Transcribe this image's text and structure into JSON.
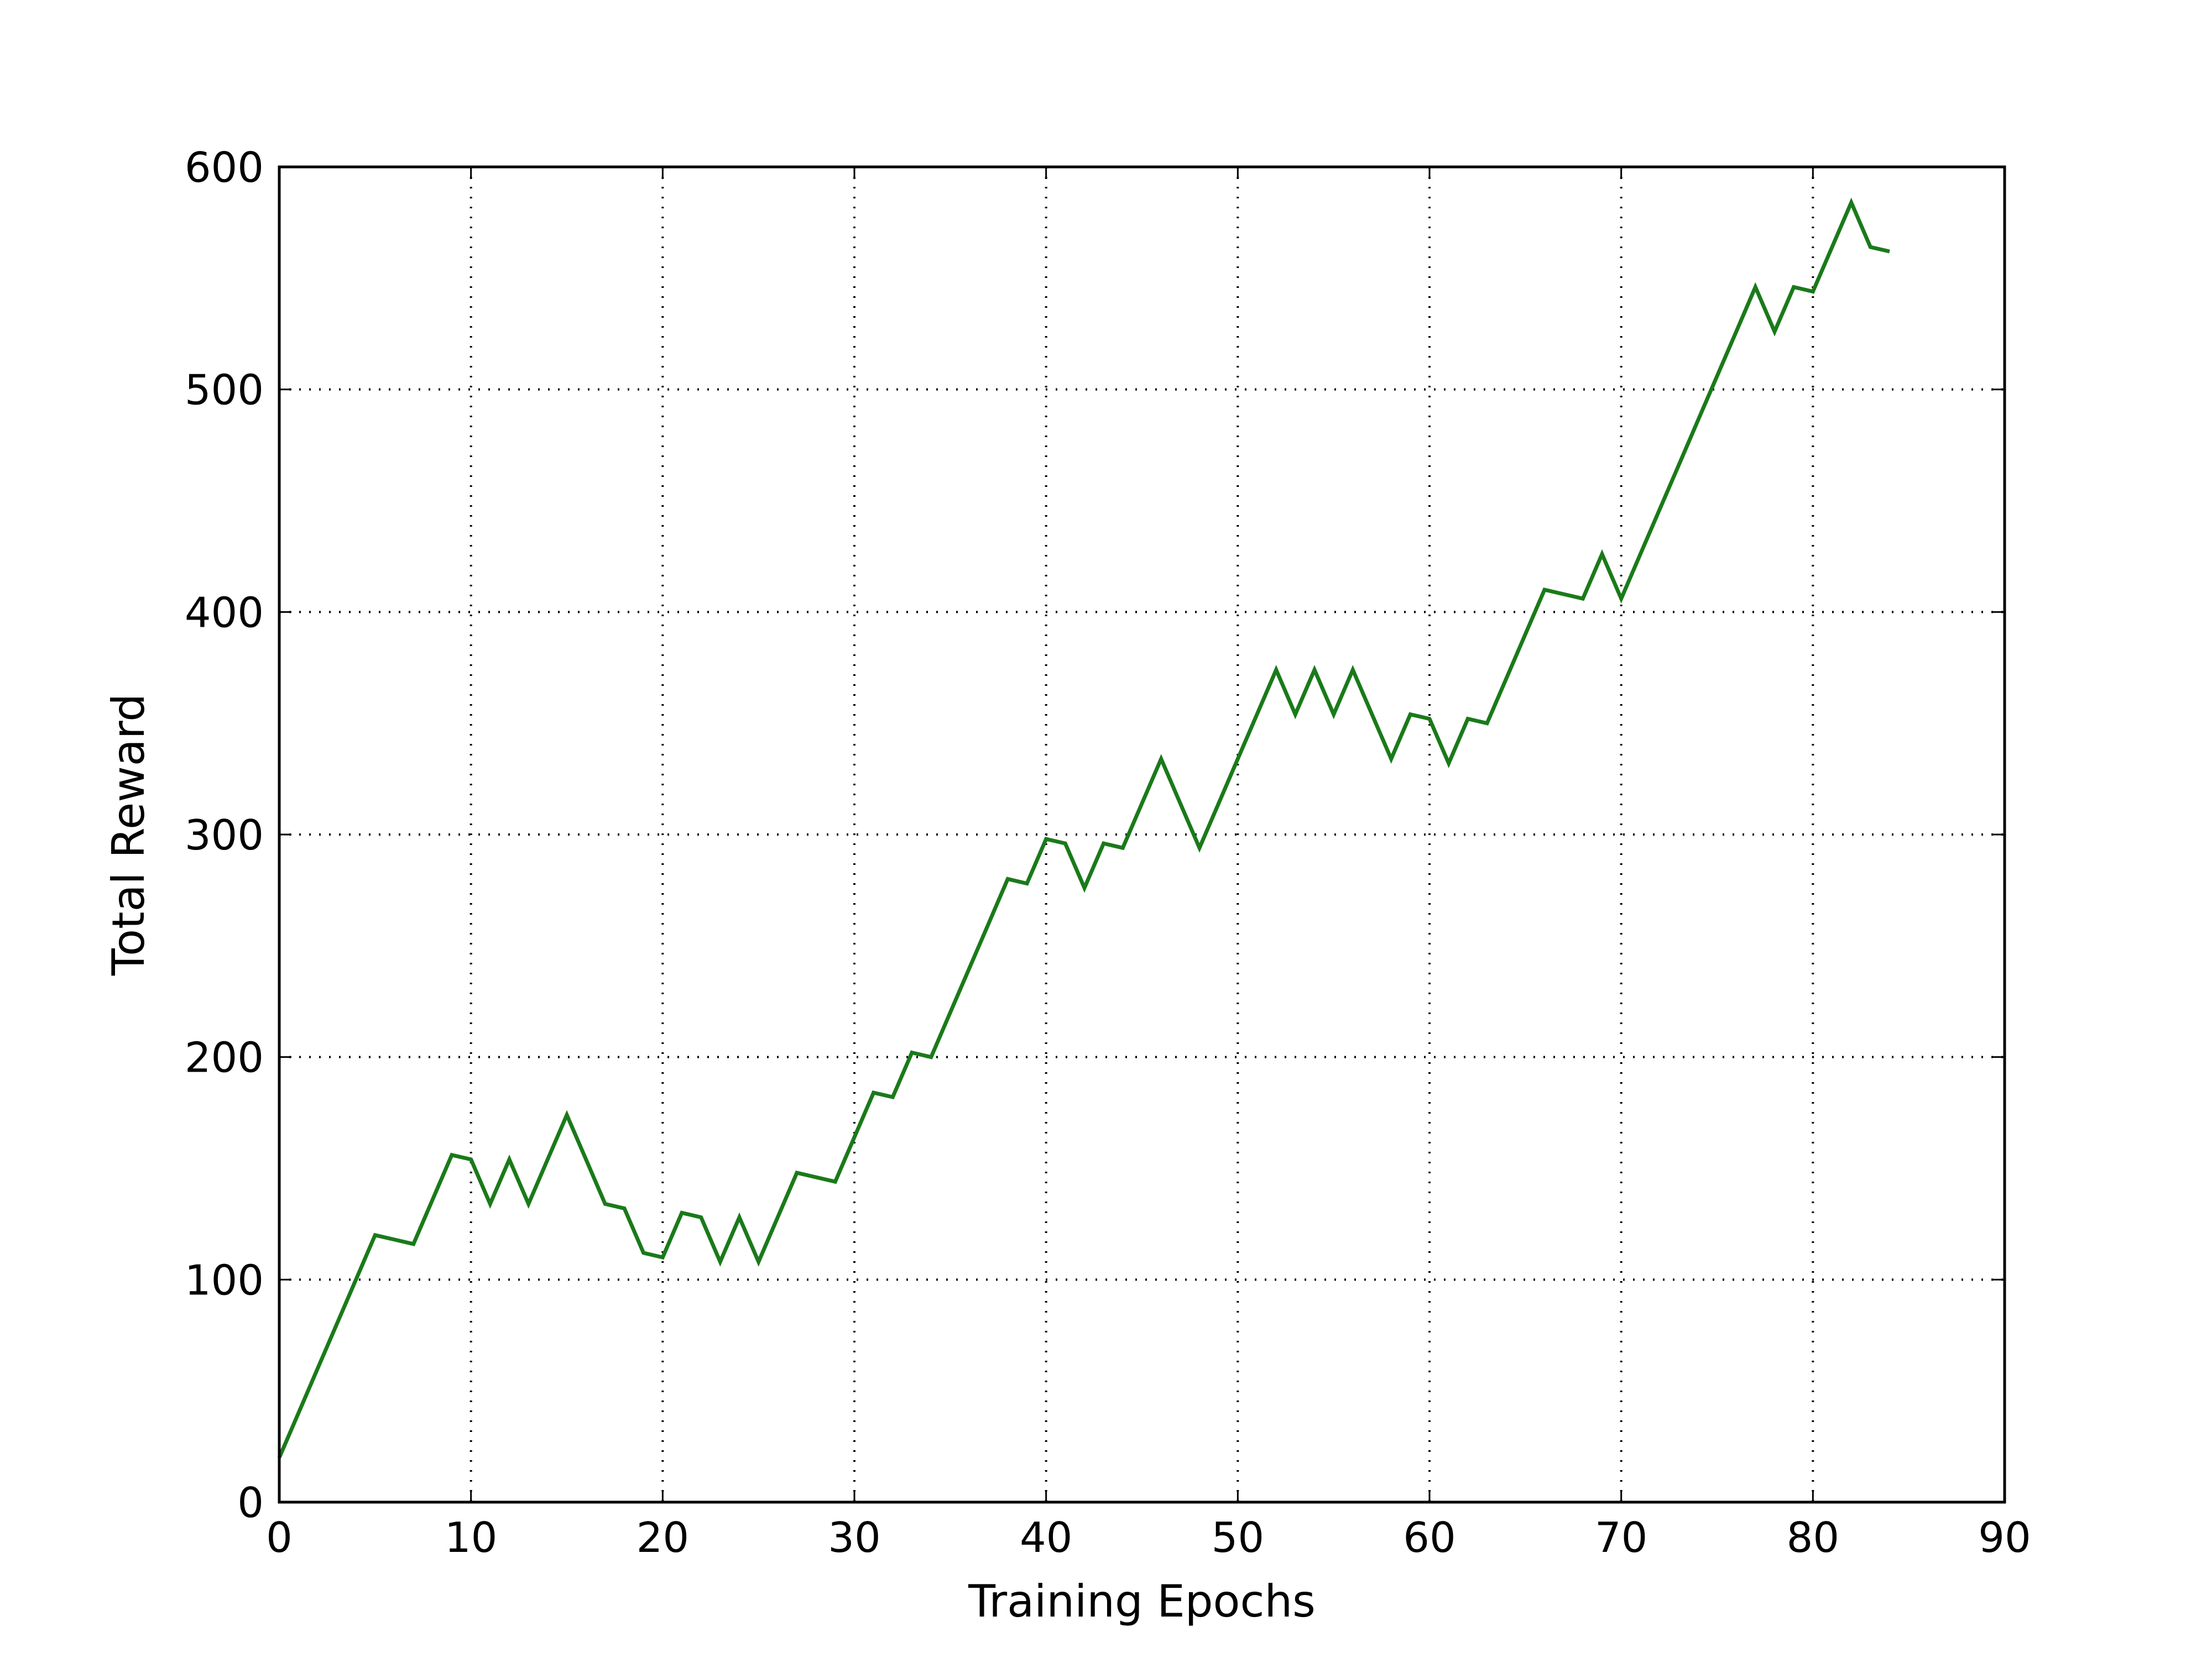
{
  "chart_data": {
    "type": "line",
    "title": "",
    "xlabel": "Training Epochs",
    "ylabel": "Total Reward",
    "xlim": [
      0,
      90
    ],
    "ylim": [
      0,
      600
    ],
    "xticks": [
      "0",
      "10",
      "20",
      "30",
      "40",
      "50",
      "60",
      "70",
      "80",
      "90"
    ],
    "yticks": [
      "0",
      "100",
      "200",
      "300",
      "400",
      "500",
      "600"
    ],
    "grid": true,
    "legend": null,
    "series": [
      {
        "color": "#1a7a1a",
        "x": [
          0,
          1,
          2,
          3,
          4,
          5,
          6,
          7,
          8,
          9,
          10,
          11,
          12,
          13,
          14,
          15,
          16,
          17,
          18,
          19,
          20,
          21,
          22,
          23,
          24,
          25,
          26,
          27,
          28,
          29,
          30,
          31,
          32,
          33,
          34,
          35,
          36,
          37,
          38,
          39,
          40,
          41,
          42,
          43,
          44,
          45,
          46,
          47,
          48,
          49,
          50,
          51,
          52,
          53,
          54,
          55,
          56,
          57,
          58,
          59,
          60,
          61,
          62,
          63,
          64,
          65,
          66,
          67,
          68,
          69,
          70,
          71,
          72,
          73,
          74,
          75,
          76,
          77,
          78,
          79,
          80,
          81,
          82,
          83,
          84
        ],
        "y": [
          20,
          40,
          60,
          80,
          100,
          120,
          118,
          116,
          136,
          156,
          154,
          134,
          154,
          134,
          154,
          174,
          154,
          134,
          132,
          112,
          110,
          130,
          128,
          108,
          128,
          108,
          128,
          148,
          146,
          144,
          164,
          184,
          182,
          202,
          200,
          220,
          240,
          260,
          280,
          278,
          298,
          296,
          276,
          296,
          294,
          314,
          334,
          314,
          294,
          314,
          334,
          354,
          374,
          354,
          374,
          354,
          374,
          354,
          334,
          354,
          352,
          332,
          352,
          350,
          370,
          390,
          410,
          408,
          406,
          426,
          406,
          426,
          446,
          466,
          486,
          506,
          526,
          546,
          526,
          546,
          544,
          564,
          584,
          564,
          562
        ]
      }
    ]
  }
}
